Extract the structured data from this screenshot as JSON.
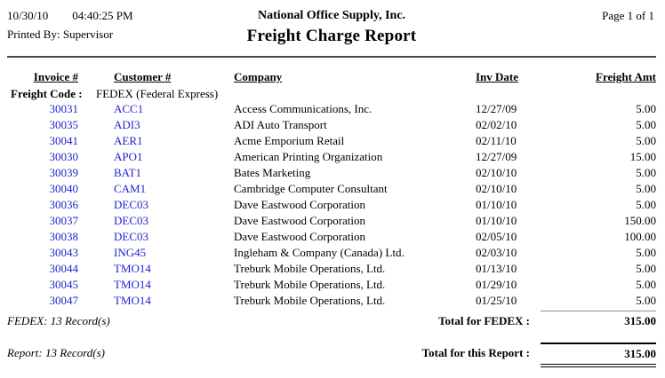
{
  "header": {
    "date": "10/30/10",
    "time": "04:40:25 PM",
    "printed_by": "Printed By: Supervisor",
    "company_name": "National Office Supply, Inc.",
    "report_title": "Freight Charge Report",
    "page_indicator": "Page 1 of 1"
  },
  "table": {
    "columns": [
      "Invoice #",
      "Customer #",
      "Company",
      "Inv Date",
      "Freight Amt"
    ],
    "group": {
      "label": "Freight Code :",
      "value": "FEDEX (Federal Express)"
    },
    "rows": [
      {
        "invoice": "30031",
        "customer": "ACC1",
        "company": "Access Communications, Inc.",
        "inv_date": "12/27/09",
        "freight_amt": "5.00"
      },
      {
        "invoice": "30035",
        "customer": "ADI3",
        "company": "ADI Auto Transport",
        "inv_date": "02/02/10",
        "freight_amt": "5.00"
      },
      {
        "invoice": "30041",
        "customer": "AER1",
        "company": "Acme Emporium Retail",
        "inv_date": "02/11/10",
        "freight_amt": "5.00"
      },
      {
        "invoice": "30030",
        "customer": "APO1",
        "company": "American Printing Organization",
        "inv_date": "12/27/09",
        "freight_amt": "15.00"
      },
      {
        "invoice": "30039",
        "customer": "BAT1",
        "company": "Bates Marketing",
        "inv_date": "02/10/10",
        "freight_amt": "5.00"
      },
      {
        "invoice": "30040",
        "customer": "CAM1",
        "company": "Cambridge Computer Consultant",
        "inv_date": "02/10/10",
        "freight_amt": "5.00"
      },
      {
        "invoice": "30036",
        "customer": "DEC03",
        "company": "Dave Eastwood Corporation",
        "inv_date": "01/10/10",
        "freight_amt": "5.00"
      },
      {
        "invoice": "30037",
        "customer": "DEC03",
        "company": "Dave Eastwood Corporation",
        "inv_date": "01/10/10",
        "freight_amt": "150.00"
      },
      {
        "invoice": "30038",
        "customer": "DEC03",
        "company": "Dave Eastwood Corporation",
        "inv_date": "02/05/10",
        "freight_amt": "100.00"
      },
      {
        "invoice": "30043",
        "customer": "ING45",
        "company": "Ingleham & Company (Canada) Ltd.",
        "inv_date": "02/03/10",
        "freight_amt": "5.00"
      },
      {
        "invoice": "30044",
        "customer": "TMO14",
        "company": "Treburk Mobile Operations, Ltd.",
        "inv_date": "01/13/10",
        "freight_amt": "5.00"
      },
      {
        "invoice": "30045",
        "customer": "TMO14",
        "company": "Treburk Mobile Operations, Ltd.",
        "inv_date": "01/29/10",
        "freight_amt": "5.00"
      },
      {
        "invoice": "30047",
        "customer": "TMO14",
        "company": "Treburk Mobile Operations, Ltd.",
        "inv_date": "01/25/10",
        "freight_amt": "5.00"
      }
    ]
  },
  "totals": {
    "group_record_count": "FEDEX: 13 Record(s)",
    "group_total_label": "Total for FEDEX :",
    "group_total_value": "315.00",
    "report_record_count": "Report: 13 Record(s)",
    "report_total_label": "Total for this Report :",
    "report_total_value": "315.00"
  },
  "colors": {
    "drilldown_blue": "#2222cc",
    "text": "#000000",
    "header_rule": "#4a4a4a",
    "group_total_rule": "#909090"
  }
}
